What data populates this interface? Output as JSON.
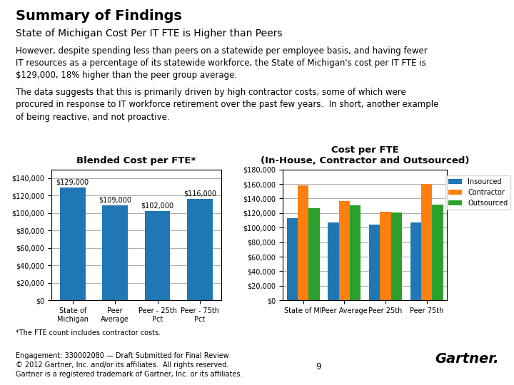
{
  "title": "Summary of Findings",
  "subtitle": "State of Michigan Cost Per IT FTE is Higher than Peers",
  "annotations": [
    [
      "However, despite spending less than peers on a statewide per employee basis, and having fewer",
      "IT resources as a percentage of its statewide workforce, the State of Michigan's cost per IT FTE is",
      "$129,000, 18% higher than the peer group average."
    ],
    [
      "The data suggests that this is primarily driven by high contractor costs, some of which were",
      "procured in response to IT workforce retirement over the past few years.  In short, another example",
      "of being reactive, and not proactive."
    ],
    [
      "Engagement: 330002080 — Draft Submitted for Final Review",
      "© 2012 Gartner, Inc. and/or its affiliates.  All rights reserved.",
      "Gartner is a registered trademark of Gartner, Inc. or its affiliates."
    ],
    [
      "9"
    ],
    [
      "Gartner."
    ]
  ],
  "chart_data": [
    {
      "type": "bar",
      "title": "Blended Cost per FTE*",
      "categories": [
        "State of\nMichigan",
        "Peer\nAverage",
        "Peer - 25th\nPct",
        "Peer - 75th\nPct"
      ],
      "values": [
        129000,
        109000,
        102000,
        116000
      ],
      "data_labels": true,
      "value_labels": [
        "$129,000",
        "$109,000",
        "$102,000",
        "$116,000"
      ],
      "ylim": [
        0,
        150000
      ],
      "yticks": [
        {
          "value": 0,
          "label": "$0"
        },
        {
          "value": 20000,
          "label": "$20,000"
        },
        {
          "value": 40000,
          "label": "$40,000"
        },
        {
          "value": 60000,
          "label": "$60,000"
        },
        {
          "value": 80000,
          "label": "$80,000"
        },
        {
          "value": 100000,
          "label": "$100,000"
        },
        {
          "value": 120000,
          "label": "$120,000"
        },
        {
          "value": 140000,
          "label": "$140,000"
        }
      ],
      "grid": true,
      "annotations": [
        "*The FTE count includes contractor costs."
      ]
    },
    {
      "type": "bar",
      "title": "Cost per FTE\n(In-House, Contractor and Outsourced)",
      "categories": [
        "State of MI",
        "Peer Average",
        "Peer 25th",
        "Peer 75th"
      ],
      "series": [
        {
          "name": "Insourced",
          "values": [
            113000,
            107000,
            104000,
            107000
          ]
        },
        {
          "name": "Contractor",
          "values": [
            158000,
            136000,
            122000,
            160000
          ]
        },
        {
          "name": "Outsourced",
          "values": [
            127000,
            131000,
            121000,
            132000
          ]
        }
      ],
      "ylim": [
        0,
        180000
      ],
      "yticks": [
        {
          "value": 0,
          "label": "$0"
        },
        {
          "value": 20000,
          "label": "$20,000"
        },
        {
          "value": 40000,
          "label": "$40,000"
        },
        {
          "value": 60000,
          "label": "$60,000"
        },
        {
          "value": 80000,
          "label": "$80,000"
        },
        {
          "value": 100000,
          "label": "$100,000"
        },
        {
          "value": 120000,
          "label": "$120,000"
        },
        {
          "value": 140000,
          "label": "$140,000"
        },
        {
          "value": 160000,
          "label": "$160,000"
        },
        {
          "value": 180000,
          "label": "$180,000"
        }
      ],
      "grid": true,
      "legend": "center right"
    }
  ]
}
